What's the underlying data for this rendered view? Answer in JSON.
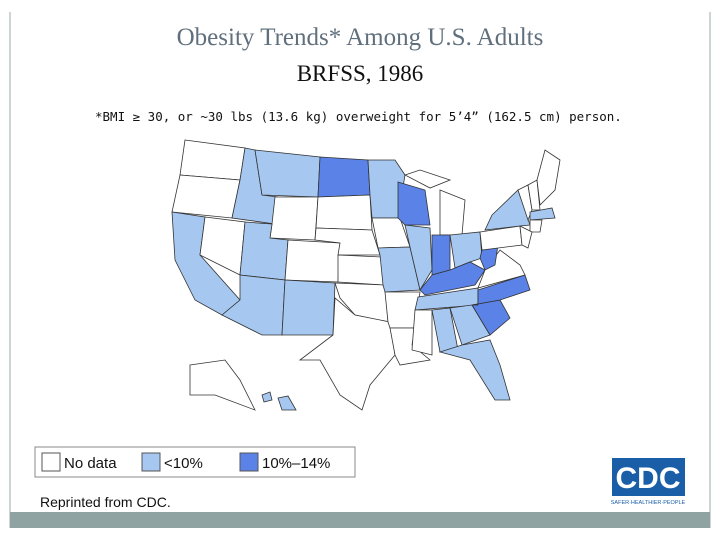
{
  "header": {
    "title": "Obesity Trends* Among U.S. Adults",
    "subtitle": "BRFSS, 1986",
    "footnote": "*BMI ≥ 30, or ~30 lbs (13.6 kg) overweight for 5’4” (162.5 cm) person."
  },
  "legend": {
    "items": [
      {
        "label": "No data",
        "color": "#ffffff"
      },
      {
        "label": "<10%",
        "color": "#a6c8f0"
      },
      {
        "label": "10%–14%",
        "color": "#5b82e6"
      }
    ]
  },
  "credit": "Reprinted from CDC.",
  "logo": {
    "text": "CDC",
    "tagline": "SAFER·HEALTHIER·PEOPLE"
  }
}
